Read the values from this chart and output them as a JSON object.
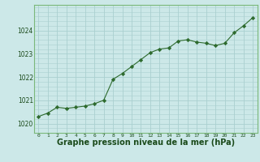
{
  "x": [
    0,
    1,
    2,
    3,
    4,
    5,
    6,
    7,
    8,
    9,
    10,
    11,
    12,
    13,
    14,
    15,
    16,
    17,
    18,
    19,
    20,
    21,
    22,
    23
  ],
  "y": [
    1020.3,
    1020.45,
    1020.7,
    1020.65,
    1020.7,
    1020.75,
    1020.85,
    1021.0,
    1021.9,
    1022.15,
    1022.45,
    1022.75,
    1023.05,
    1023.2,
    1023.25,
    1023.55,
    1023.6,
    1023.5,
    1023.45,
    1023.35,
    1023.45,
    1023.9,
    1024.2,
    1024.55
  ],
  "line_color": "#2d6a2d",
  "marker": "D",
  "marker_size": 2.2,
  "bg_color": "#cce8e8",
  "grid_color": "#aad0d0",
  "xlabel": "Graphe pression niveau de la mer (hPa)",
  "xlabel_fontsize": 7.0,
  "xlabel_color": "#1a4a1a",
  "tick_label_color": "#1a4a1a",
  "ylim": [
    1019.6,
    1025.1
  ],
  "xlim": [
    -0.5,
    23.5
  ],
  "yticks": [
    1020,
    1021,
    1022,
    1023,
    1024
  ],
  "xtick_labels": [
    "0",
    "1",
    "2",
    "3",
    "4",
    "5",
    "6",
    "7",
    "8",
    "9",
    "10",
    "11",
    "12",
    "13",
    "14",
    "15",
    "16",
    "17",
    "18",
    "19",
    "20",
    "21",
    "22",
    "23"
  ]
}
